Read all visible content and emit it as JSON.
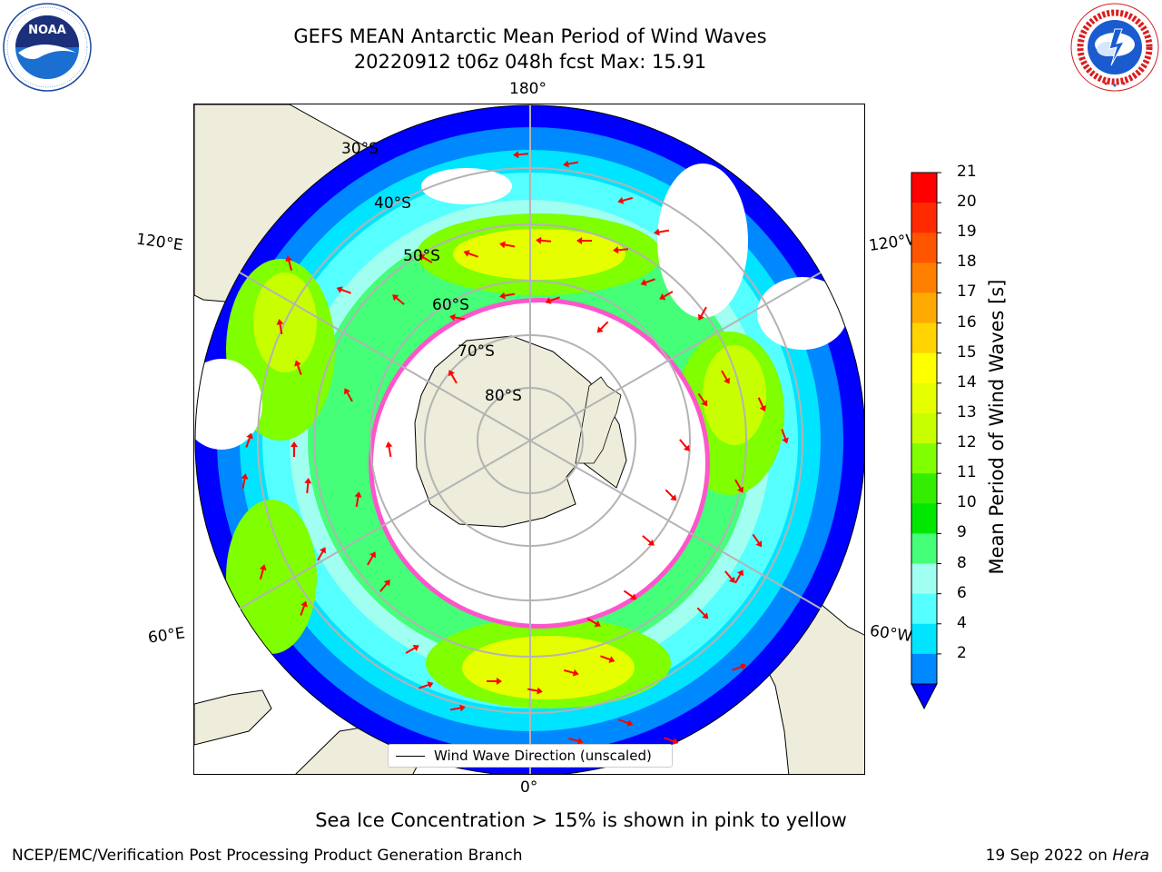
{
  "title": {
    "line1": "GEFS MEAN Antarctic Mean Period of Wind Waves",
    "line2": "20220912 t06z 048h fcst   Max: 15.91"
  },
  "logos": {
    "left": "noaa-logo",
    "right": "national-weather-service-logo"
  },
  "map": {
    "projection": "south-polar-stereographic",
    "longitude_labels": {
      "top": "180°",
      "bottom": "0°",
      "upper_left": "120°E",
      "upper_right": "120°W",
      "lower_left": "60°E",
      "lower_right": "60°W"
    },
    "latitude_labels": [
      "30°S",
      "40°S",
      "50°S",
      "60°S",
      "70°S",
      "80°S"
    ],
    "colors": {
      "land": "#eeecda",
      "coastline": "#000000",
      "gridlines": "#b3b3b3",
      "arrows": "#ff0000",
      "sea_ice": "#ff55cc"
    }
  },
  "legend": {
    "label": "Wind Wave Direction (unscaled)"
  },
  "colorbar": {
    "label": "Mean Period of Wind Waves [s]",
    "ticks": [
      "21",
      "20",
      "19",
      "18",
      "17",
      "16",
      "15",
      "14",
      "13",
      "12",
      "11",
      "10",
      "9",
      "8",
      "6",
      "4",
      "2"
    ],
    "bands": [
      {
        "color": "#ff0000"
      },
      {
        "color": "#ff2a00"
      },
      {
        "color": "#ff5500"
      },
      {
        "color": "#ff8000"
      },
      {
        "color": "#ffaa00"
      },
      {
        "color": "#ffd400"
      },
      {
        "color": "#ffff00"
      },
      {
        "color": "#e6ff00"
      },
      {
        "color": "#c8ff00"
      },
      {
        "color": "#7fff00"
      },
      {
        "color": "#33ee00"
      },
      {
        "color": "#00e800"
      },
      {
        "color": "#44ff77"
      },
      {
        "color": "#a0fff0"
      },
      {
        "color": "#55ffff"
      },
      {
        "color": "#00e4ff"
      },
      {
        "color": "#0088ff"
      }
    ],
    "extend_color": "#0000ff"
  },
  "footnote": "Sea Ice Concentration > 15% is shown in pink to yellow",
  "footer": {
    "left": "NCEP/EMC/Verification Post Processing Product Generation Branch",
    "right_prefix": "19 Sep 2022 on ",
    "right_machine": "Hera"
  }
}
